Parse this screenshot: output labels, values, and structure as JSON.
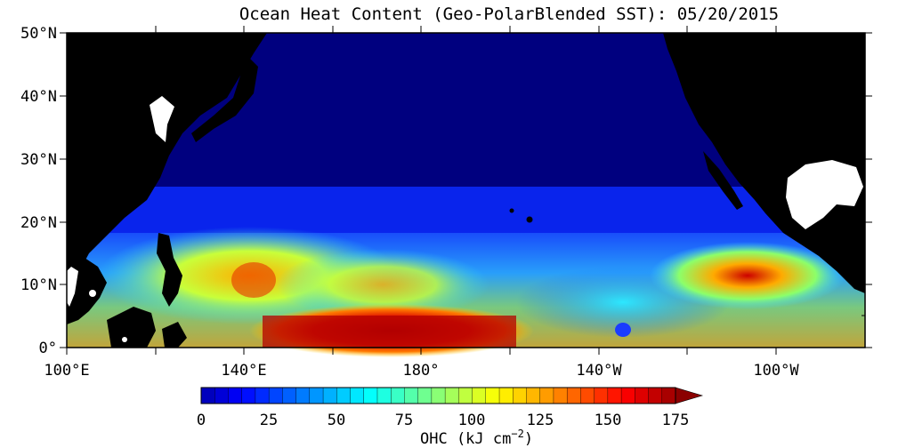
{
  "title": "Ocean Heat Content (Geo-PolarBlended SST): 05/20/2015",
  "lat_ticks": [
    "50°N",
    "40°N",
    "30°N",
    "20°N",
    "10°N",
    "0°"
  ],
  "lon_ticks": [
    "100°E",
    "140°E",
    "180°",
    "140°W",
    "100°W"
  ],
  "colorbar": {
    "tick_labels": [
      "0",
      "25",
      "50",
      "75",
      "100",
      "125",
      "150",
      "175"
    ],
    "title_main": "OHC (kJ cm",
    "title_exp": "−2",
    "title_close": ")"
  },
  "colors": {
    "land": "#000000",
    "low": "#00007f",
    "high": "#8b0000",
    "missing": "#ffffff"
  }
}
